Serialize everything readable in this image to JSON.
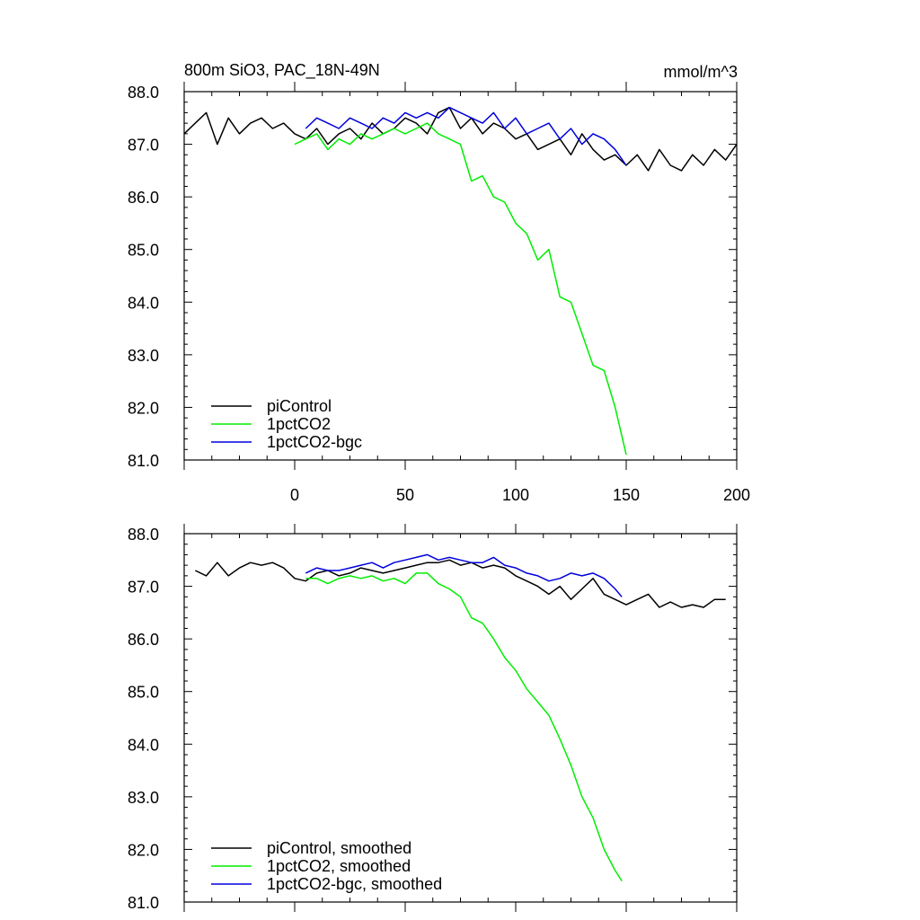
{
  "chart_data": [
    {
      "type": "line",
      "title_left": "800m SiO3, PAC_18N-49N",
      "title_right": "mmol/m^3",
      "xlabel": "",
      "ylabel": "",
      "xlim": [
        -50,
        200
      ],
      "ylim": [
        81.0,
        88.0
      ],
      "x_ticks": [
        0,
        50,
        100,
        150,
        200
      ],
      "x_tick_labels": [
        "0",
        "50",
        "100",
        "150",
        "200"
      ],
      "y_ticks": [
        81,
        82,
        83,
        84,
        85,
        86,
        87,
        88
      ],
      "y_tick_labels": [
        "81.0",
        "82.0",
        "83.0",
        "84.0",
        "85.0",
        "86.0",
        "87.0",
        "88.0"
      ],
      "legend_position": "bottom-left",
      "series": [
        {
          "name": "piControl",
          "color": "#000000",
          "x": [
            -50,
            -45,
            -40,
            -35,
            -30,
            -25,
            -20,
            -15,
            -10,
            -5,
            0,
            5,
            10,
            15,
            20,
            25,
            30,
            35,
            40,
            45,
            50,
            55,
            60,
            65,
            70,
            75,
            80,
            85,
            90,
            95,
            100,
            105,
            110,
            115,
            120,
            125,
            130,
            135,
            140,
            145,
            150,
            155,
            160,
            165,
            170,
            175,
            180,
            185,
            190,
            195,
            200
          ],
          "values": [
            87.2,
            87.4,
            87.6,
            87.0,
            87.5,
            87.2,
            87.4,
            87.5,
            87.3,
            87.4,
            87.2,
            87.1,
            87.3,
            87.0,
            87.2,
            87.3,
            87.1,
            87.4,
            87.2,
            87.3,
            87.5,
            87.4,
            87.2,
            87.6,
            87.7,
            87.3,
            87.5,
            87.2,
            87.4,
            87.3,
            87.1,
            87.2,
            86.9,
            87.0,
            87.1,
            86.8,
            87.2,
            86.9,
            86.7,
            86.8,
            86.6,
            86.8,
            86.5,
            86.9,
            86.6,
            86.5,
            86.8,
            86.6,
            86.9,
            86.7,
            87.0
          ]
        },
        {
          "name": "1pctCO2",
          "color": "#00ee00",
          "x": [
            0,
            5,
            10,
            15,
            20,
            25,
            30,
            35,
            40,
            45,
            50,
            55,
            60,
            65,
            70,
            75,
            80,
            85,
            90,
            95,
            100,
            105,
            110,
            115,
            120,
            125,
            130,
            135,
            140,
            145,
            150
          ],
          "values": [
            87.0,
            87.1,
            87.2,
            86.9,
            87.1,
            87.0,
            87.2,
            87.1,
            87.2,
            87.3,
            87.2,
            87.3,
            87.4,
            87.2,
            87.1,
            87.0,
            86.3,
            86.4,
            86.0,
            85.9,
            85.5,
            85.3,
            84.8,
            85.0,
            84.1,
            84.0,
            83.4,
            82.8,
            82.7,
            82.0,
            81.1
          ]
        },
        {
          "name": "1pctCO2-bgc",
          "color": "#0000dd",
          "x": [
            5,
            10,
            15,
            20,
            25,
            30,
            35,
            40,
            45,
            50,
            55,
            60,
            65,
            70,
            75,
            80,
            85,
            90,
            95,
            100,
            105,
            110,
            115,
            120,
            125,
            130,
            135,
            140,
            145,
            150
          ],
          "values": [
            87.3,
            87.5,
            87.4,
            87.3,
            87.5,
            87.4,
            87.3,
            87.5,
            87.4,
            87.6,
            87.5,
            87.6,
            87.5,
            87.7,
            87.6,
            87.5,
            87.4,
            87.6,
            87.3,
            87.5,
            87.2,
            87.3,
            87.4,
            87.1,
            87.3,
            87.0,
            87.2,
            87.1,
            86.9,
            86.6
          ]
        }
      ]
    },
    {
      "type": "line",
      "xlabel": "",
      "ylabel": "",
      "xlim": [
        -50,
        200
      ],
      "ylim": [
        81.0,
        88.0
      ],
      "x_ticks": [
        0,
        50,
        100,
        150,
        200
      ],
      "y_ticks": [
        81,
        82,
        83,
        84,
        85,
        86,
        87,
        88
      ],
      "y_tick_labels": [
        "81.0",
        "82.0",
        "83.0",
        "84.0",
        "85.0",
        "86.0",
        "87.0",
        "88.0"
      ],
      "legend_position": "bottom-left",
      "series": [
        {
          "name": "piControl, smoothed",
          "color": "#000000",
          "x": [
            -45,
            -40,
            -35,
            -30,
            -25,
            -20,
            -15,
            -10,
            -5,
            0,
            5,
            10,
            15,
            20,
            25,
            30,
            35,
            40,
            45,
            50,
            55,
            60,
            65,
            70,
            75,
            80,
            85,
            90,
            95,
            100,
            105,
            110,
            115,
            120,
            125,
            130,
            135,
            140,
            145,
            150,
            155,
            160,
            165,
            170,
            175,
            180,
            185,
            190,
            195
          ],
          "values": [
            87.3,
            87.2,
            87.45,
            87.2,
            87.35,
            87.45,
            87.4,
            87.45,
            87.35,
            87.15,
            87.1,
            87.25,
            87.3,
            87.2,
            87.25,
            87.35,
            87.3,
            87.25,
            87.3,
            87.35,
            87.4,
            87.45,
            87.45,
            87.5,
            87.4,
            87.45,
            87.35,
            87.4,
            87.35,
            87.2,
            87.1,
            87.0,
            86.85,
            87.0,
            86.75,
            86.95,
            87.15,
            86.85,
            86.75,
            86.65,
            86.75,
            86.85,
            86.6,
            86.7,
            86.6,
            86.65,
            86.6,
            86.75,
            86.75
          ]
        },
        {
          "name": "1pctCO2, smoothed",
          "color": "#00ee00",
          "x": [
            5,
            10,
            15,
            20,
            25,
            30,
            35,
            40,
            45,
            50,
            55,
            60,
            65,
            70,
            75,
            80,
            85,
            90,
            95,
            100,
            105,
            110,
            115,
            120,
            125,
            130,
            135,
            140,
            145,
            148
          ],
          "values": [
            87.15,
            87.15,
            87.05,
            87.15,
            87.2,
            87.15,
            87.2,
            87.1,
            87.15,
            87.05,
            87.25,
            87.25,
            87.05,
            86.95,
            86.8,
            86.4,
            86.3,
            86.0,
            85.65,
            85.4,
            85.05,
            84.8,
            84.55,
            84.1,
            83.6,
            83.0,
            82.6,
            82.0,
            81.6,
            81.4
          ]
        },
        {
          "name": "1pctCO2-bgc, smoothed",
          "color": "#0000dd",
          "x": [
            5,
            10,
            15,
            20,
            25,
            30,
            35,
            40,
            45,
            50,
            55,
            60,
            65,
            70,
            75,
            80,
            85,
            90,
            95,
            100,
            105,
            110,
            115,
            120,
            125,
            130,
            135,
            140,
            145,
            148
          ],
          "values": [
            87.25,
            87.35,
            87.3,
            87.3,
            87.35,
            87.4,
            87.45,
            87.35,
            87.45,
            87.5,
            87.55,
            87.6,
            87.5,
            87.55,
            87.5,
            87.45,
            87.45,
            87.55,
            87.4,
            87.35,
            87.25,
            87.2,
            87.1,
            87.15,
            87.25,
            87.2,
            87.25,
            87.15,
            86.95,
            86.8
          ]
        }
      ]
    }
  ]
}
